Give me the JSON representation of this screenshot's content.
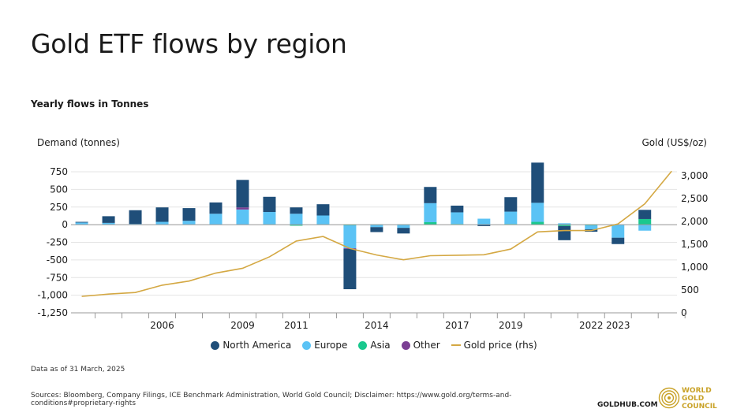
{
  "header": {
    "title": "Gold ETF flows by region",
    "subtitle": "Yearly flows in Tonnes"
  },
  "axes": {
    "left_title": "Demand (tonnes)",
    "right_title": "Gold (US$/oz)"
  },
  "footer": {
    "note": "Data as of 31 March, 2025",
    "sources": "Sources: Bloomberg, Company Filings, ICE Benchmark Administration, World Gold Council; Disclaimer: https://www.gold.org/terms-and-conditions#proprietary-rights",
    "goldhub": "GOLDHUB.COM",
    "logo_line1": "WORLD",
    "logo_line2": "GOLD",
    "logo_line3": "COUNCIL"
  },
  "colors": {
    "north_america": "#1f4e79",
    "europe": "#5bc3f5",
    "asia": "#1ac88e",
    "other": "#7b3f93",
    "gold_price": "#d4a843",
    "gridline": "#e4e4e4",
    "logo_gold": "#c9a227"
  },
  "chart_data": {
    "type": "bar",
    "stacked": true,
    "categories": [
      "2003",
      "2004",
      "2005",
      "2006",
      "2007",
      "2008",
      "2009",
      "2010",
      "2011",
      "2012",
      "2013",
      "2014",
      "2015",
      "2016",
      "2017",
      "2018",
      "2019",
      "2020",
      "2021",
      "2022",
      "2023",
      "2024",
      "2025"
    ],
    "x_tick_labels": [
      {
        "label": "2006",
        "index": 3
      },
      {
        "label": "2009",
        "index": 6
      },
      {
        "label": "2011",
        "index": 8
      },
      {
        "label": "2014",
        "index": 11
      },
      {
        "label": "2017",
        "index": 14
      },
      {
        "label": "2019",
        "index": 16
      },
      {
        "label": "2022",
        "index": 19
      },
      {
        "label": "2023",
        "index": 20
      }
    ],
    "series": [
      {
        "name": "North America",
        "values": [
          10,
          95,
          195,
          205,
          180,
          160,
          390,
          215,
          90,
          160,
          -570,
          -70,
          -80,
          230,
          95,
          -20,
          205,
          570,
          -200,
          -35,
          -90,
          130,
          0
        ]
      },
      {
        "name": "Europe",
        "values": [
          30,
          25,
          10,
          40,
          55,
          155,
          215,
          175,
          155,
          125,
          -325,
          -35,
          -45,
          270,
          165,
          85,
          175,
          270,
          20,
          -55,
          -185,
          -85,
          0
        ]
      },
      {
        "name": "Asia",
        "values": [
          0,
          0,
          0,
          0,
          0,
          0,
          0,
          5,
          -15,
          5,
          -10,
          5,
          5,
          35,
          10,
          0,
          10,
          40,
          -20,
          -10,
          0,
          80,
          0
        ]
      },
      {
        "name": "Other",
        "values": [
          0,
          0,
          0,
          0,
          0,
          0,
          30,
          0,
          0,
          0,
          -10,
          0,
          0,
          0,
          0,
          0,
          0,
          0,
          0,
          0,
          0,
          0,
          0
        ]
      }
    ],
    "line_series": {
      "name": "Gold price (rhs)",
      "values": [
        360,
        410,
        445,
        605,
        695,
        870,
        975,
        1225,
        1570,
        1670,
        1410,
        1265,
        1160,
        1250,
        1260,
        1270,
        1395,
        1770,
        1800,
        1800,
        1945,
        2385,
        3100
      ]
    },
    "ylim": [
      -1250,
      750
    ],
    "yticks": [
      -1250,
      -1000,
      -750,
      -500,
      -250,
      0,
      250,
      500,
      750
    ],
    "ytick_labels": [
      "-1,250",
      "-1,000",
      "-750",
      "-500",
      "-250",
      "0",
      "250",
      "500",
      "750"
    ],
    "y2lim": [
      0,
      3000
    ],
    "y2ticks": [
      0,
      500,
      1000,
      1500,
      2000,
      2500,
      3000
    ],
    "y2tick_labels": [
      "0",
      "500",
      "1,000",
      "1,500",
      "2,000",
      "2,500",
      "3,000"
    ],
    "legend_position": "bottom-center",
    "grid": true
  }
}
